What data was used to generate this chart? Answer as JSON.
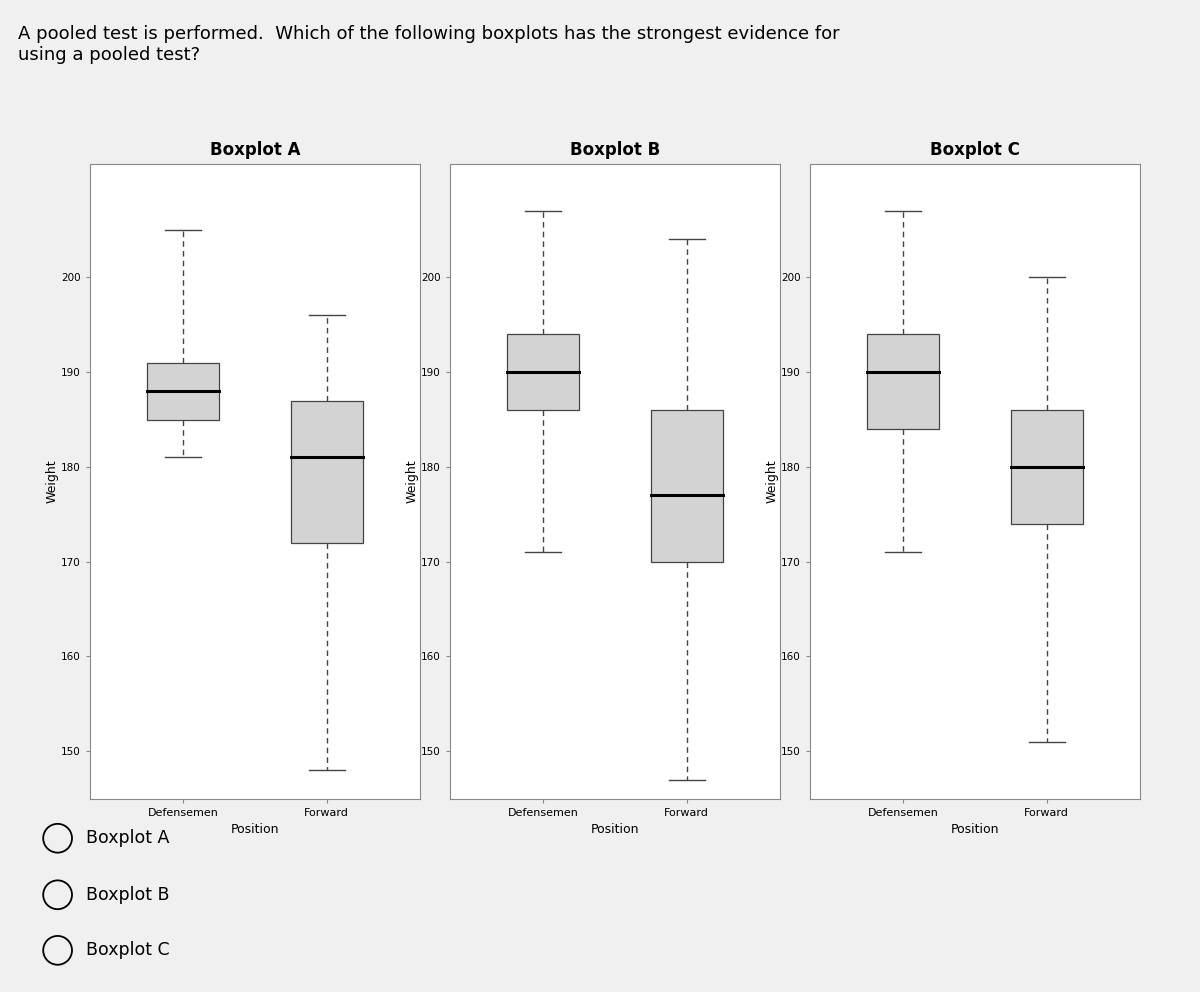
{
  "question_text": "A pooled test is performed.  Which of the following boxplots has the strongest evidence for\nusing a pooled test?",
  "titles": [
    "Boxplot A",
    "Boxplot B",
    "Boxplot C"
  ],
  "xlabel": "Position",
  "ylabel": "Weight",
  "categories": [
    "Defensemen",
    "Forward"
  ],
  "ylim": [
    145,
    212
  ],
  "yticks": [
    150,
    160,
    170,
    180,
    190,
    200
  ],
  "box_color": "#d3d3d3",
  "box_edge_color": "#444444",
  "median_color": "black",
  "whisker_color": "#444444",
  "background_color": "#f0f0f0",
  "choices": [
    "Boxplot A",
    "Boxplot B",
    "Boxplot C"
  ],
  "plots": [
    {
      "name": "A",
      "defensemen": {
        "q1": 185,
        "median": 188,
        "q3": 191,
        "whisker_low": 181,
        "whisker_high": 205
      },
      "forward": {
        "q1": 172,
        "median": 181,
        "q3": 187,
        "whisker_low": 148,
        "whisker_high": 196
      }
    },
    {
      "name": "B",
      "defensemen": {
        "q1": 186,
        "median": 190,
        "q3": 194,
        "whisker_low": 171,
        "whisker_high": 207
      },
      "forward": {
        "q1": 170,
        "median": 177,
        "q3": 186,
        "whisker_low": 147,
        "whisker_high": 204
      }
    },
    {
      "name": "C",
      "defensemen": {
        "q1": 184,
        "median": 190,
        "q3": 194,
        "whisker_low": 171,
        "whisker_high": 207
      },
      "forward": {
        "q1": 174,
        "median": 180,
        "q3": 186,
        "whisker_low": 151,
        "whisker_high": 200
      }
    }
  ]
}
